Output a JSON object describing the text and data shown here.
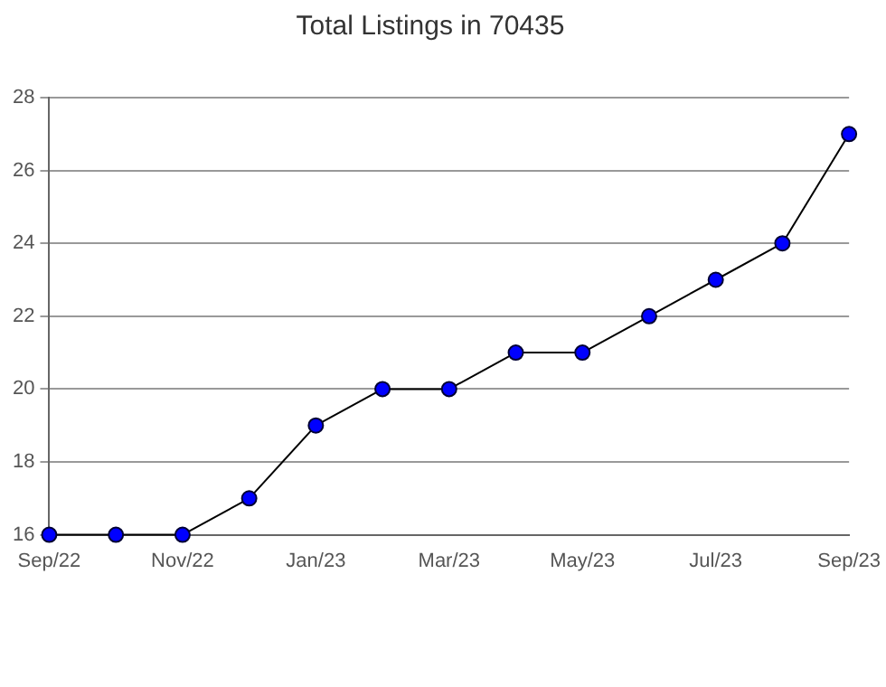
{
  "chart_data": {
    "type": "line",
    "title": "Total Listings in 70435",
    "categories": [
      "Sep/22",
      null,
      "Nov/22",
      null,
      "Jan/23",
      null,
      "Mar/23",
      null,
      "May/23",
      null,
      "Jul/23",
      null,
      "Sep/23"
    ],
    "series": [
      {
        "color": "#0000ff",
        "values": [
          16,
          16,
          16,
          17,
          19,
          20,
          20,
          21,
          21,
          22,
          23,
          24,
          27
        ]
      }
    ],
    "ylim": [
      16,
      28
    ],
    "yticks": [
      16,
      18,
      20,
      22,
      24,
      26,
      28
    ],
    "grid": "y",
    "marker": "circle",
    "line_style": "solid",
    "legend": false
  }
}
